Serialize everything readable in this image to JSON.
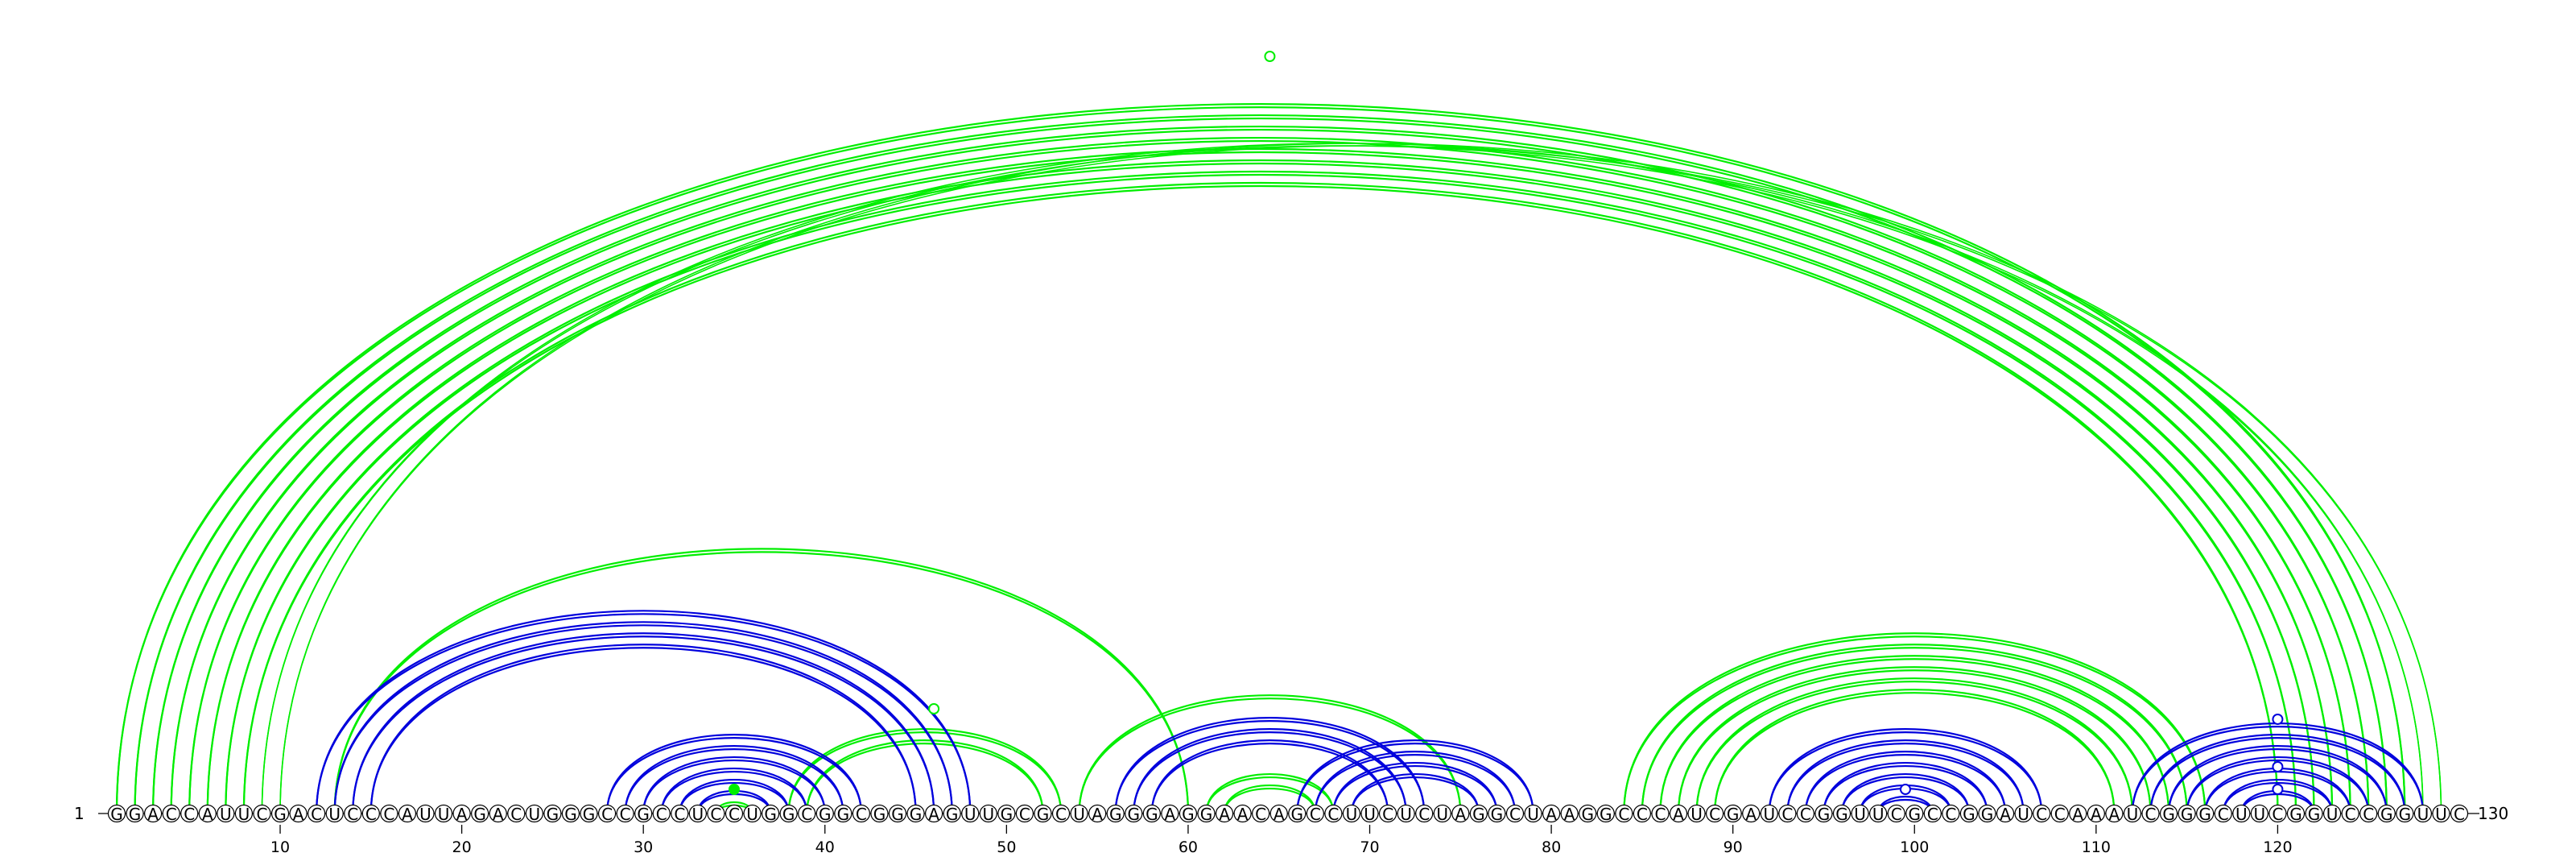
{
  "sequence": "GGACCAUUCGACUCCCAUUAGACUGGGCCGCCUCCUGGCGGCGGGAGUUGCGCUAGGGAGGAACAGCCUUCUCUAGGCUAAGGCCCAUCGAUCCGGUUCGCCGGAUCCAAAUCGGGCUUCGGUCCGGUUC",
  "start_label": "1",
  "end_label": "130",
  "ticks": [
    10,
    20,
    30,
    40,
    50,
    60,
    70,
    80,
    90,
    100,
    110,
    120
  ],
  "colors": {
    "structure_a": "#00ee00",
    "structure_b": "#0000dd"
  },
  "arc_groups": [
    {
      "color": "green",
      "pairs": [
        [
          1,
          127
        ],
        [
          2,
          126
        ],
        [
          3,
          125
        ],
        [
          4,
          124
        ],
        [
          5,
          123
        ],
        [
          6,
          122
        ],
        [
          7,
          121
        ],
        [
          8,
          120
        ]
      ],
      "style": "double"
    },
    {
      "color": "green",
      "pairs": [
        [
          9,
          128
        ],
        [
          10,
          129
        ]
      ],
      "style": "double-thin"
    },
    {
      "color": "green",
      "pairs": [
        [
          13,
          60
        ]
      ],
      "style": "double"
    },
    {
      "color": "green",
      "pairs": [
        [
          38,
          53
        ],
        [
          39,
          52
        ]
      ],
      "style": "double"
    },
    {
      "color": "green",
      "pairs": [
        [
          54,
          75
        ]
      ],
      "style": "double"
    },
    {
      "color": "green",
      "pairs": [
        [
          61,
          68
        ],
        [
          62,
          67
        ]
      ],
      "style": "double"
    },
    {
      "color": "green",
      "pairs": [
        [
          84,
          116
        ],
        [
          85,
          115
        ],
        [
          86,
          114
        ],
        [
          87,
          113
        ],
        [
          88,
          112
        ],
        [
          89,
          111
        ]
      ],
      "style": "double"
    },
    {
      "color": "green",
      "pairs": [
        [
          34,
          36
        ]
      ],
      "style": "double"
    },
    {
      "color": "blue",
      "pairs": [
        [
          12,
          48
        ],
        [
          13,
          47
        ],
        [
          14,
          46
        ],
        [
          15,
          45
        ]
      ],
      "style": "double"
    },
    {
      "color": "blue",
      "pairs": [
        [
          28,
          42
        ],
        [
          29,
          41
        ],
        [
          30,
          40
        ],
        [
          31,
          39
        ],
        [
          32,
          38
        ],
        [
          33,
          37
        ]
      ],
      "style": "double"
    },
    {
      "color": "blue",
      "pairs": [
        [
          56,
          73
        ],
        [
          57,
          72
        ],
        [
          58,
          71
        ]
      ],
      "style": "double"
    },
    {
      "color": "blue",
      "pairs": [
        [
          66,
          79
        ],
        [
          67,
          78
        ],
        [
          68,
          77
        ],
        [
          69,
          76
        ]
      ],
      "style": "double"
    },
    {
      "color": "blue",
      "pairs": [
        [
          92,
          107
        ],
        [
          93,
          106
        ],
        [
          94,
          105
        ],
        [
          95,
          104
        ],
        [
          96,
          103
        ],
        [
          97,
          102
        ],
        [
          98,
          101
        ]
      ],
      "style": "double"
    },
    {
      "color": "blue",
      "pairs": [
        [
          112,
          128
        ],
        [
          113,
          127
        ],
        [
          114,
          126
        ],
        [
          115,
          125
        ],
        [
          116,
          124
        ],
        [
          117,
          123
        ],
        [
          118,
          122
        ]
      ],
      "style": "double"
    }
  ]
}
